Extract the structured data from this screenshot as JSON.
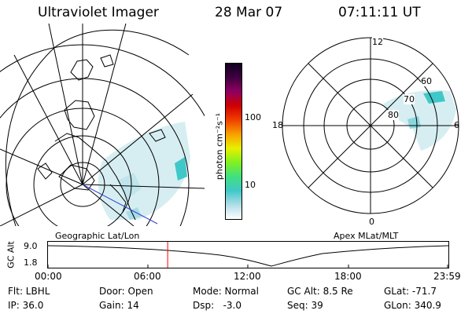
{
  "header": {
    "instrument": "Ultraviolet Imager",
    "date": "28 Mar 07",
    "time": "07:11:11 UT"
  },
  "left_panel": {
    "label": "Geographic Lat/Lon"
  },
  "right_panel": {
    "label": "Apex MLat/MLT",
    "mlt_labels": [
      "12",
      "18",
      "6",
      "0"
    ],
    "mlat_labels": [
      "60",
      "70",
      "80"
    ]
  },
  "colorbar": {
    "unit_label": "photon cm⁻²s⁻¹",
    "tick_labels": [
      "100",
      "10"
    ],
    "scale": "log",
    "colors": [
      "#ffffff",
      "#b0dde8",
      "#40c8c8",
      "#40e080",
      "#80f020",
      "#e8f000",
      "#f8a000",
      "#f04000",
      "#d00000",
      "#900060",
      "#400040",
      "#100020"
    ]
  },
  "altitude_plot": {
    "ylabel": "GC Alt",
    "y_ticks": [
      "9.0",
      "1.8"
    ],
    "x_ticks": [
      "00:00",
      "06:00",
      "12:00",
      "18:00",
      "23:59"
    ],
    "current_marker_time": "07:11",
    "marker_color": "#ff0000"
  },
  "info": {
    "row1": {
      "filter": "Flt: LBHL",
      "door": "Door: Open",
      "mode": "Mode: Normal",
      "gc_alt": "GC Alt: 8.5 Re",
      "glat": "GLat: -71.7"
    },
    "row2": {
      "ip": "IP: 36.0",
      "gain": "Gain: 14",
      "dsp": "Dsp:   -3.0",
      "seq": "Seq: 39",
      "glon": "GLon: 340.9"
    }
  }
}
